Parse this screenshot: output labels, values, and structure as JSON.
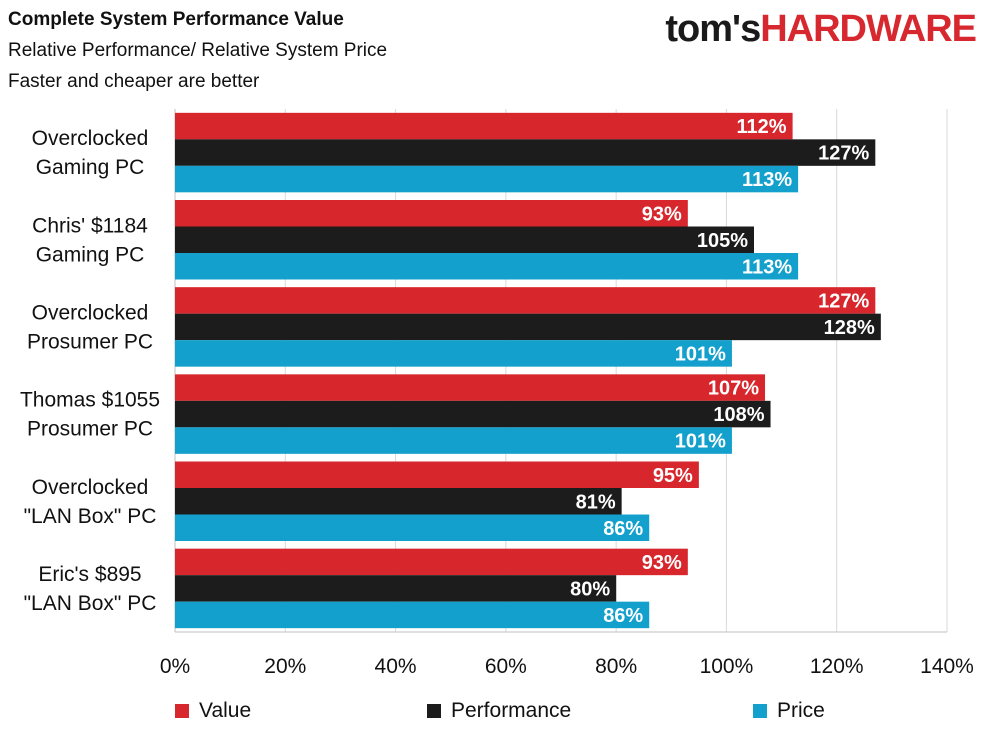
{
  "header": {
    "title": "Complete System Performance Value",
    "subtitle1": "Relative Performance/ Relative System Price",
    "subtitle2": "Faster and cheaper are better"
  },
  "logo": {
    "part1": "tom's",
    "part2": "HARDWARE"
  },
  "colors": {
    "value": "#d7262c",
    "performance": "#1c1c1c",
    "price": "#14a0cc",
    "grid": "#d9d9d9"
  },
  "chart_data": {
    "type": "bar",
    "orientation": "horizontal",
    "title": "Complete System Performance Value",
    "subtitle": "Relative Performance/ Relative System Price",
    "categories": [
      [
        "Overclocked",
        "Gaming PC"
      ],
      [
        "Chris' $1184",
        "Gaming PC"
      ],
      [
        "Overclocked",
        "Prosumer PC"
      ],
      [
        "Thomas $1055",
        "Prosumer PC"
      ],
      [
        "Overclocked",
        "\"LAN Box\" PC"
      ],
      [
        "Eric's $895",
        "\"LAN Box\" PC"
      ]
    ],
    "series": [
      {
        "name": "Value",
        "color": "#d7262c",
        "values": [
          112,
          93,
          127,
          107,
          95,
          93
        ]
      },
      {
        "name": "Performance",
        "color": "#1c1c1c",
        "values": [
          127,
          105,
          128,
          108,
          81,
          80
        ]
      },
      {
        "name": "Price",
        "color": "#14a0cc",
        "values": [
          113,
          113,
          101,
          101,
          86,
          86
        ]
      }
    ],
    "xlim": [
      0,
      140
    ],
    "ticks": [
      "0%",
      "20%",
      "40%",
      "60%",
      "80%",
      "100%",
      "120%",
      "140%"
    ],
    "grid": true,
    "legend_position": "bottom"
  }
}
